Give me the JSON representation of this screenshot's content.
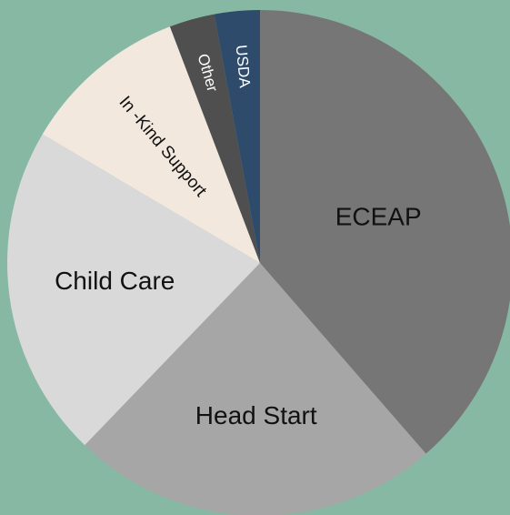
{
  "chart_data": {
    "type": "pie",
    "categories": [
      "ECEAP",
      "Head Start",
      "Child Care",
      "In -Kind Support",
      "Other",
      "USDA"
    ],
    "values": [
      38.6,
      23.6,
      21.3,
      10.7,
      2.9,
      2.9
    ],
    "colors": [
      "#767676",
      "#a6a6a6",
      "#d9d9d9",
      "#f2e8de",
      "#4f4f4f",
      "#2f4b6c"
    ]
  }
}
